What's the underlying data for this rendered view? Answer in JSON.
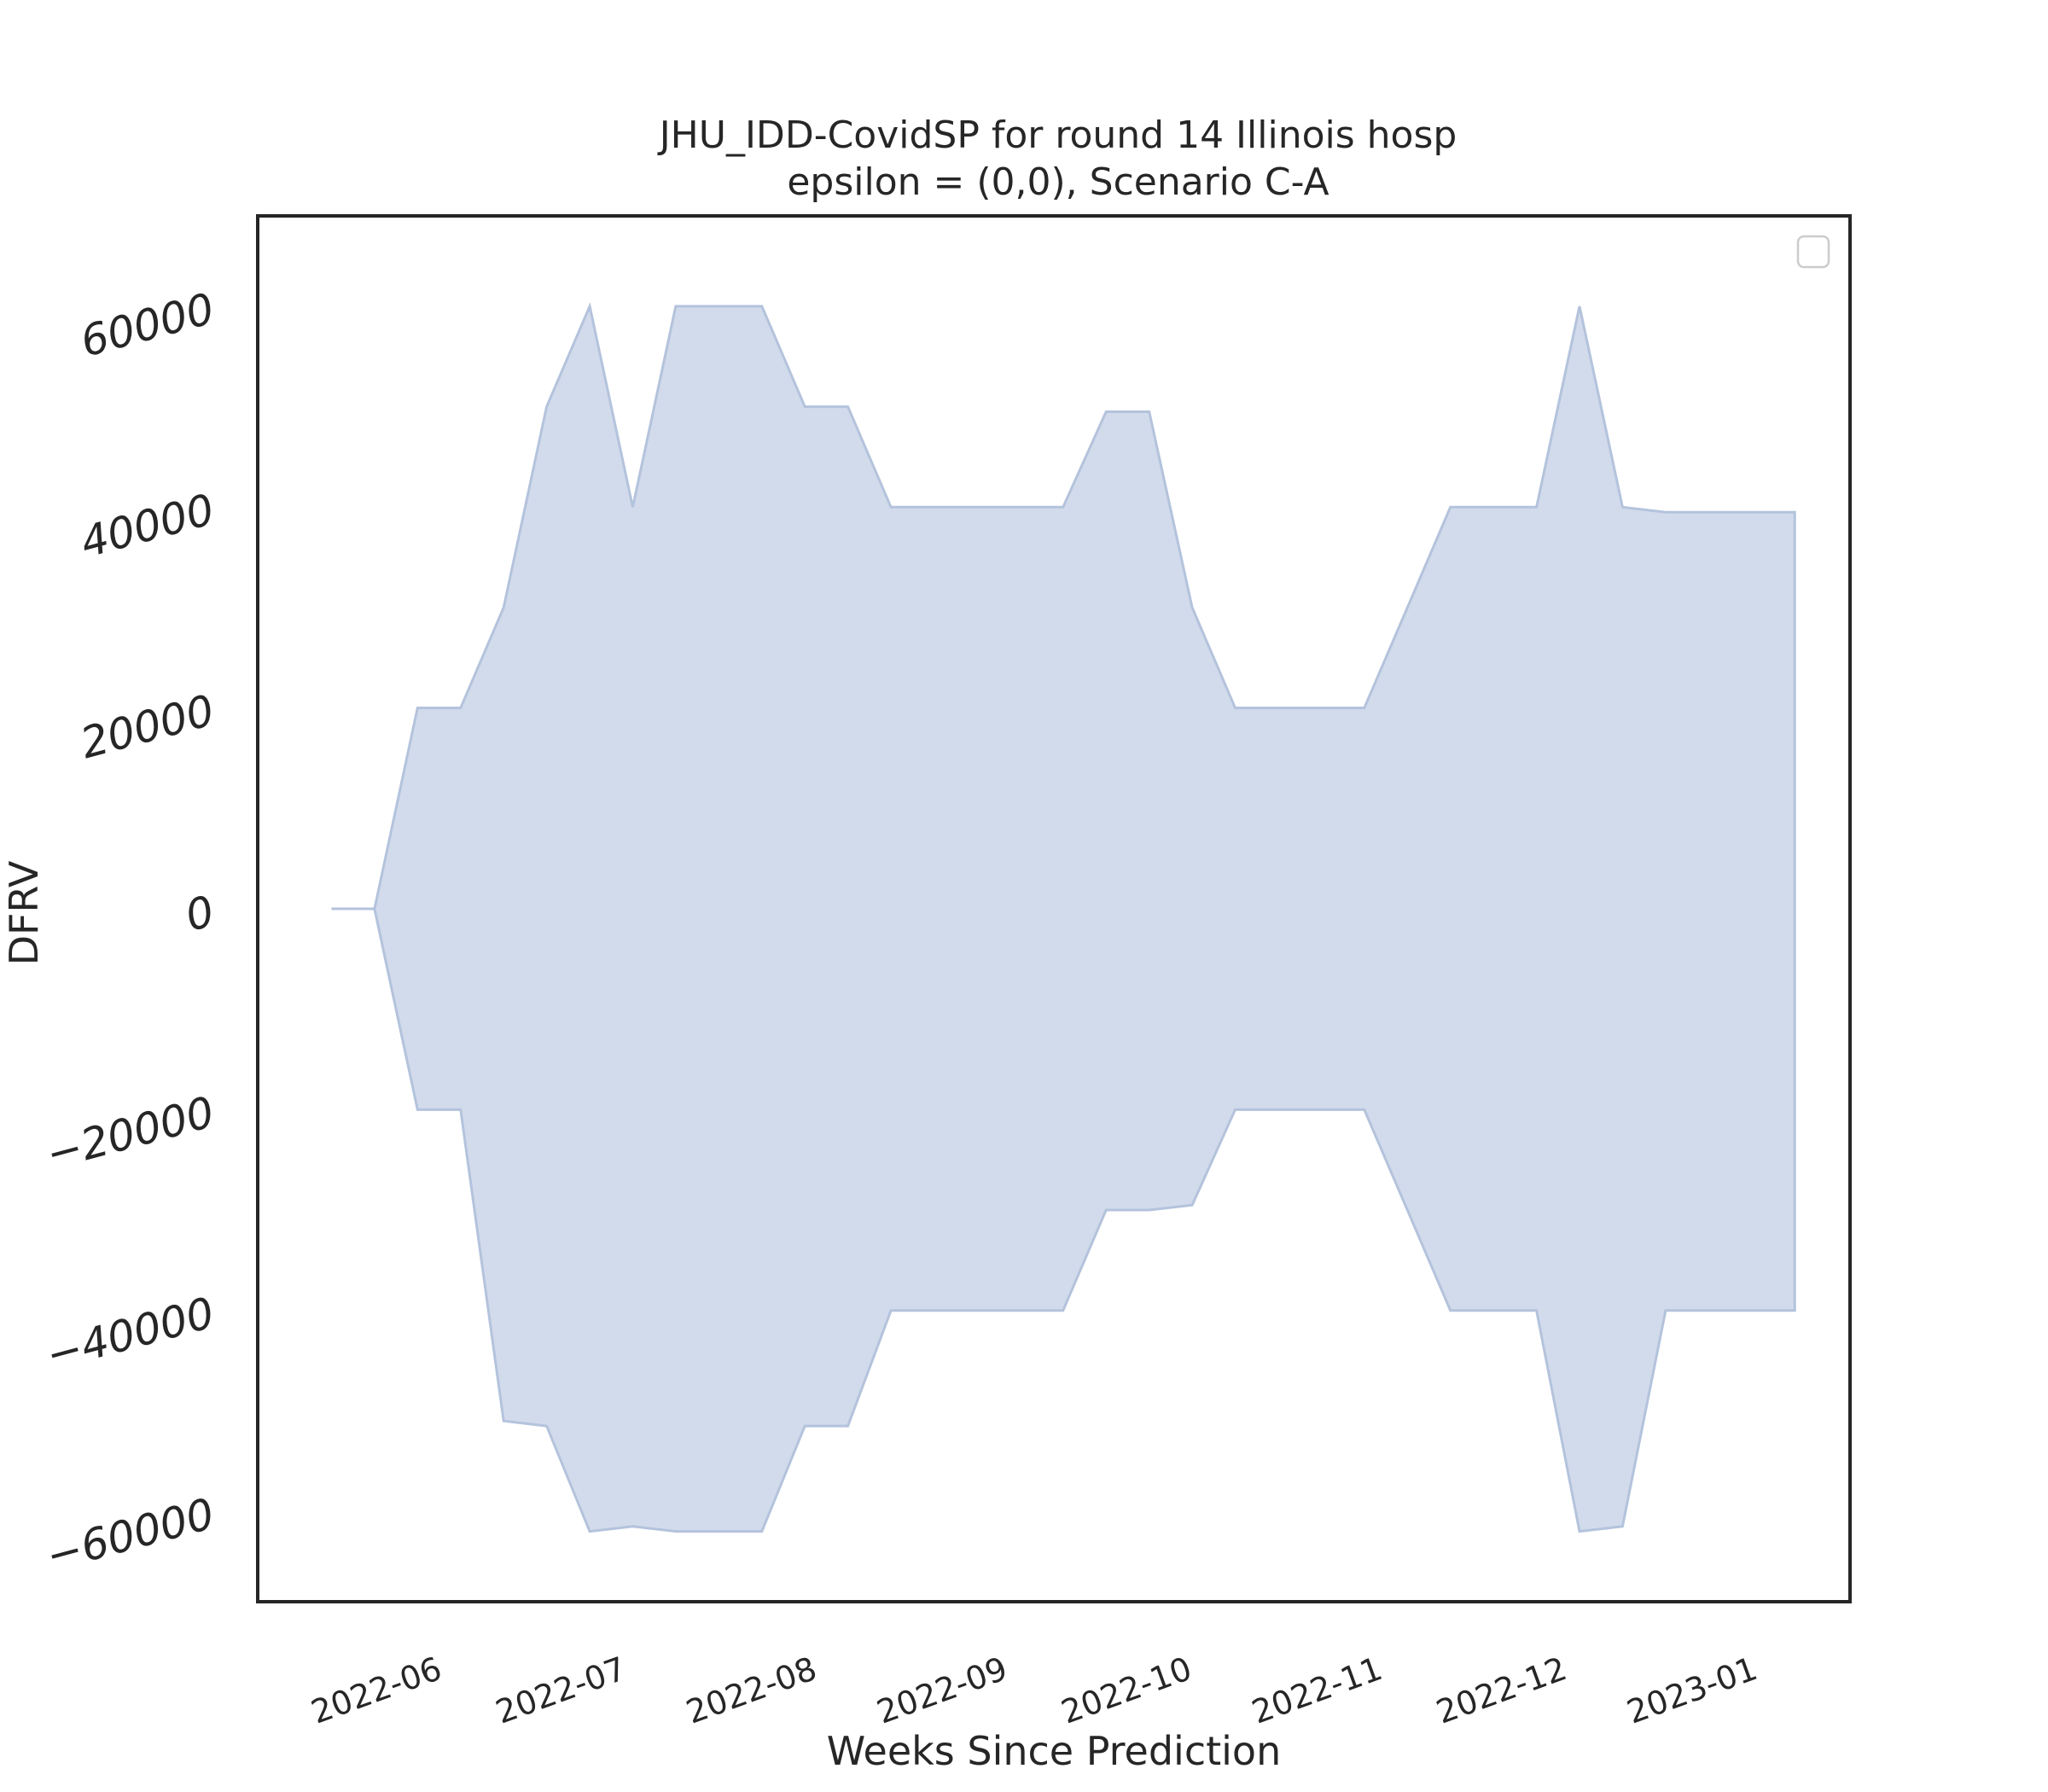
{
  "chart_data": {
    "type": "area",
    "title": "JHU_IDD-CovidSP for round 14 Illinois hosp",
    "subtitle": "epsilon = (0,0), Scenario C-A",
    "xlabel": "Weeks Since Prediction",
    "ylabel": "DFRV",
    "ylim": [
      -69000,
      69000
    ],
    "y_ticks": [
      -60000,
      -40000,
      -20000,
      0,
      20000,
      40000,
      60000
    ],
    "y_tick_labels": [
      "−60000",
      "−40000",
      "−20000",
      "0",
      "20000",
      "40000",
      "60000"
    ],
    "x_ticks": [
      "2022-06-01",
      "2022-07-01",
      "2022-08-01",
      "2022-09-01",
      "2022-10-01",
      "2022-11-01",
      "2022-12-01",
      "2023-01-01"
    ],
    "x_tick_labels": [
      "2022-06",
      "2022-07",
      "2022-08",
      "2022-09",
      "2022-10",
      "2022-11",
      "2022-12",
      "2023-01"
    ],
    "xlim": [
      "2022-05-02",
      "2023-01-16"
    ],
    "grid": false,
    "legend": {
      "placement": "top-right",
      "entries": []
    },
    "colors": {
      "fill": "#d2dbeb",
      "edge": "#b4c3dc",
      "frame": "#262626"
    },
    "series": [
      {
        "x": [
          "2022-05-14",
          "2022-05-21",
          "2022-05-28",
          "2022-06-04",
          "2022-06-11",
          "2022-06-18",
          "2022-06-25",
          "2022-07-02",
          "2022-07-09",
          "2022-07-16",
          "2022-07-23",
          "2022-07-30",
          "2022-08-06",
          "2022-08-13",
          "2022-08-20",
          "2022-08-27",
          "2022-09-03",
          "2022-09-10",
          "2022-09-17",
          "2022-09-24",
          "2022-10-01",
          "2022-10-08",
          "2022-10-15",
          "2022-10-22",
          "2022-10-29",
          "2022-11-05",
          "2022-11-12",
          "2022-11-19",
          "2022-11-26",
          "2022-12-03",
          "2022-12-10",
          "2022-12-17",
          "2022-12-24",
          "2022-12-31",
          "2023-01-07"
        ],
        "lower": [
          0,
          0,
          -20000,
          -20000,
          -51000,
          -51500,
          -62000,
          -61500,
          -62000,
          -62000,
          -62000,
          -51500,
          -51500,
          -40000,
          -40000,
          -40000,
          -40000,
          -40000,
          -30000,
          -30000,
          -29500,
          -20000,
          -20000,
          -20000,
          -20000,
          -30000,
          -40000,
          -40000,
          -40000,
          -62000,
          -61500,
          -40000,
          -40000,
          -40000,
          -40000
        ],
        "upper": [
          0,
          0,
          20000,
          20000,
          30000,
          50000,
          60000,
          40000,
          60000,
          60000,
          60000,
          50000,
          50000,
          40000,
          40000,
          40000,
          40000,
          40000,
          49500,
          49500,
          30000,
          20000,
          20000,
          20000,
          20000,
          30000,
          40000,
          40000,
          40000,
          60000,
          40000,
          39500,
          39500,
          39500,
          39500
        ]
      }
    ]
  }
}
